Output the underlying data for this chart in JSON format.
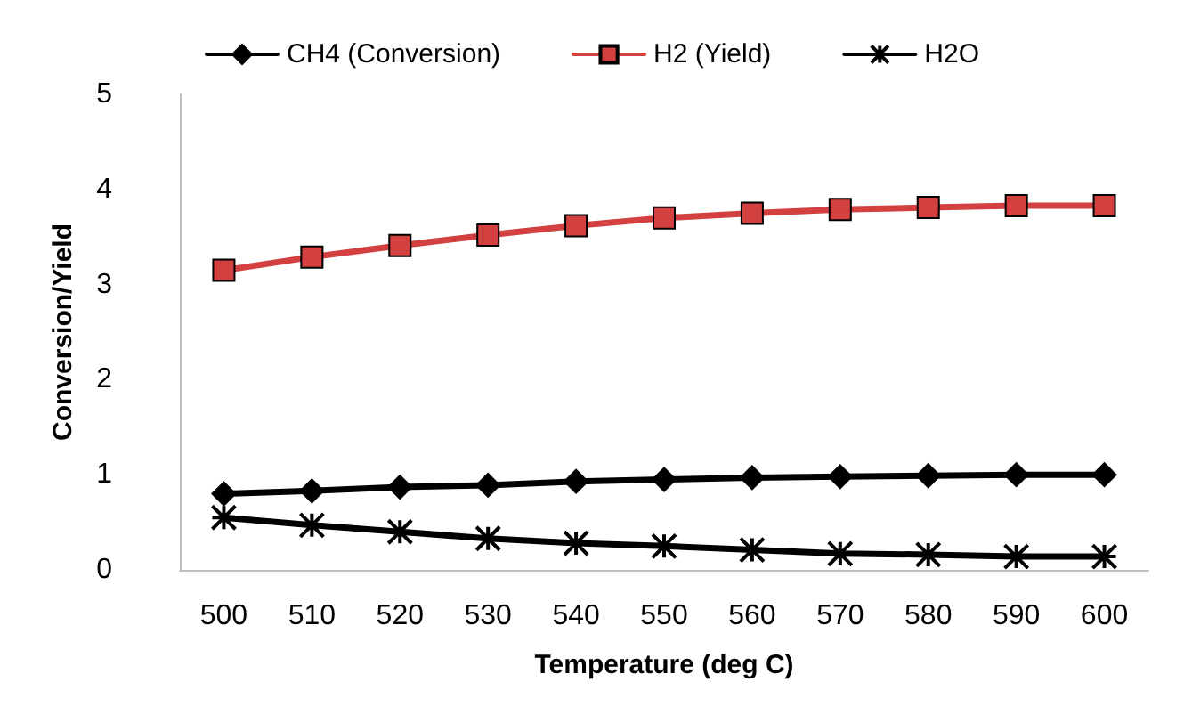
{
  "chart_data": {
    "type": "line",
    "xlabel": "Temperature (deg C)",
    "ylabel": "Conversion/Yield",
    "categories": [
      "500",
      "510",
      "520",
      "530",
      "540",
      "550",
      "560",
      "570",
      "580",
      "590",
      "600"
    ],
    "series": [
      {
        "name": "CH4 (Conversion)",
        "color": "#000000",
        "marker": "diamond",
        "values": [
          0.8,
          0.83,
          0.87,
          0.89,
          0.93,
          0.95,
          0.97,
          0.98,
          0.99,
          1.0,
          1.0
        ]
      },
      {
        "name": "H2 (Yield)",
        "color": "#d24040",
        "marker": "square",
        "values": [
          3.15,
          3.29,
          3.41,
          3.52,
          3.62,
          3.7,
          3.75,
          3.79,
          3.81,
          3.83,
          3.83
        ]
      },
      {
        "name": "H2O",
        "color": "#000000",
        "marker": "cross",
        "values": [
          0.55,
          0.47,
          0.4,
          0.33,
          0.28,
          0.25,
          0.21,
          0.17,
          0.16,
          0.14,
          0.14
        ]
      }
    ],
    "ylim": [
      0,
      5
    ],
    "yticks": [
      0,
      1,
      2,
      3,
      4,
      5
    ],
    "grid": false,
    "legend": "top"
  }
}
